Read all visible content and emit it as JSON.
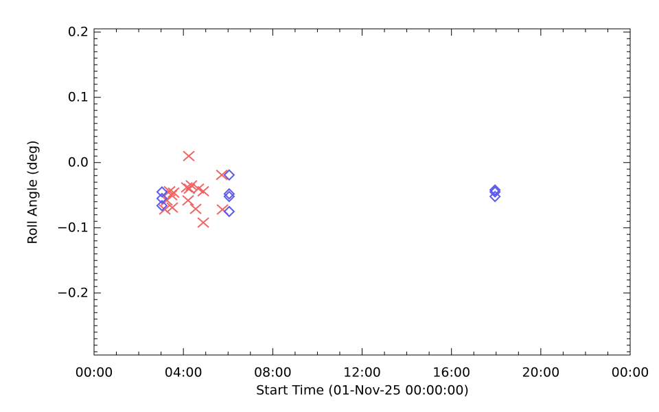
{
  "chart_data": {
    "type": "scatter",
    "xlabel": "Start Time (01-Nov-25 00:00:00)",
    "ylabel": "Roll Angle (deg)",
    "xlim": [
      0,
      24
    ],
    "xticks": [
      {
        "value": 0,
        "label": "00:00"
      },
      {
        "value": 4,
        "label": "04:00"
      },
      {
        "value": 8,
        "label": "08:00"
      },
      {
        "value": 12,
        "label": "12:00"
      },
      {
        "value": 16,
        "label": "16:00"
      },
      {
        "value": 20,
        "label": "20:00"
      },
      {
        "value": 24,
        "label": "00:00"
      }
    ],
    "ylim": [
      -0.295,
      0.205
    ],
    "yticks": [
      {
        "value": -0.2,
        "label": "−0.2"
      },
      {
        "value": -0.1,
        "label": "−0.1"
      },
      {
        "value": 0,
        "label": "0.0"
      },
      0.1,
      0.2
    ],
    "x_minor_per_major": 4,
    "y_minor_per_major": 10,
    "series": [
      {
        "color": "#f06464",
        "marker": "x",
        "x": [
          3.17,
          3.26,
          3.38,
          3.5,
          3.56,
          3.47,
          4.24,
          4.15,
          4.27,
          4.21,
          4.36,
          4.55,
          4.67,
          4.89,
          4.89,
          5.72,
          5.75
        ],
        "values": [
          -0.072,
          -0.058,
          -0.044,
          -0.069,
          -0.046,
          -0.05,
          0.01,
          -0.038,
          -0.04,
          -0.058,
          -0.035,
          -0.071,
          -0.04,
          -0.044,
          -0.092,
          -0.019,
          -0.072
        ]
      },
      {
        "color": "#5a5af0",
        "marker": "diamond",
        "x": [
          3.04,
          3.04,
          3.04,
          6.05,
          6.05,
          6.05,
          6.05,
          17.95,
          17.95,
          17.95
        ],
        "values": [
          -0.045,
          -0.055,
          -0.066,
          -0.019,
          -0.048,
          -0.052,
          -0.075,
          -0.042,
          -0.045,
          -0.052
        ]
      }
    ]
  }
}
